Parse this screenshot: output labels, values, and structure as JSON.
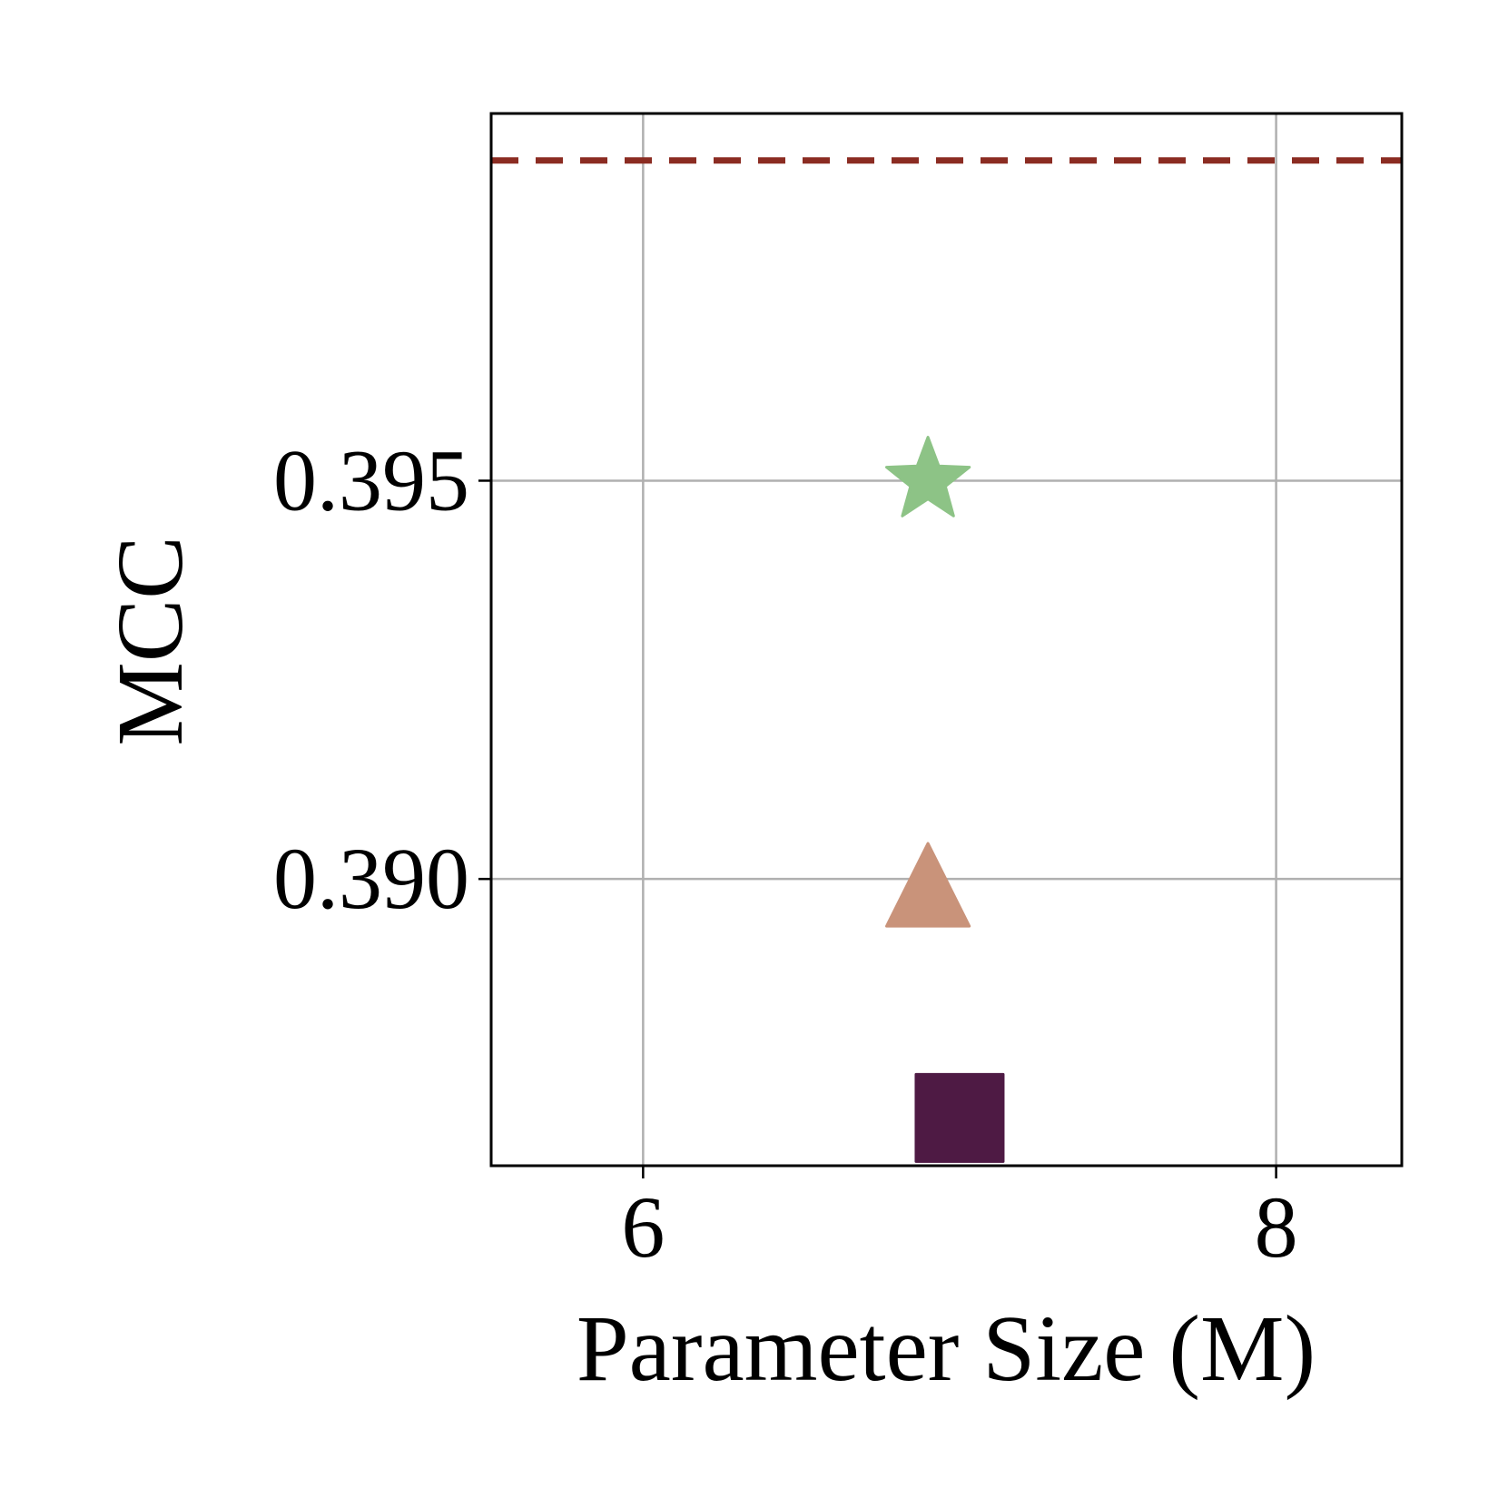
{
  "chart_data": {
    "type": "scatter",
    "xlabel": "Parameter Size (M)",
    "ylabel": "MCC",
    "xlim": [
      5.52,
      8.397
    ],
    "ylim": [
      0.3864,
      0.39961
    ],
    "xticks": [
      6,
      8
    ],
    "yticks": [
      {
        "value": 0.39,
        "label": "0.390"
      },
      0.395
    ],
    "grid": true,
    "hline": {
      "value": 0.39902,
      "color": "#8b2c22",
      "style": "dashed"
    },
    "series": [
      {
        "marker": "star",
        "color": "#8dc386",
        "x": [
          6.9
        ],
        "values": [
          0.395
        ]
      },
      {
        "marker": "triangle",
        "color": "#c9937a",
        "x": [
          6.9
        ],
        "values": [
          0.3899
        ]
      },
      {
        "marker": "square",
        "color": "#4e1a44",
        "x": [
          7.0
        ],
        "values": [
          0.387
        ]
      }
    ]
  }
}
